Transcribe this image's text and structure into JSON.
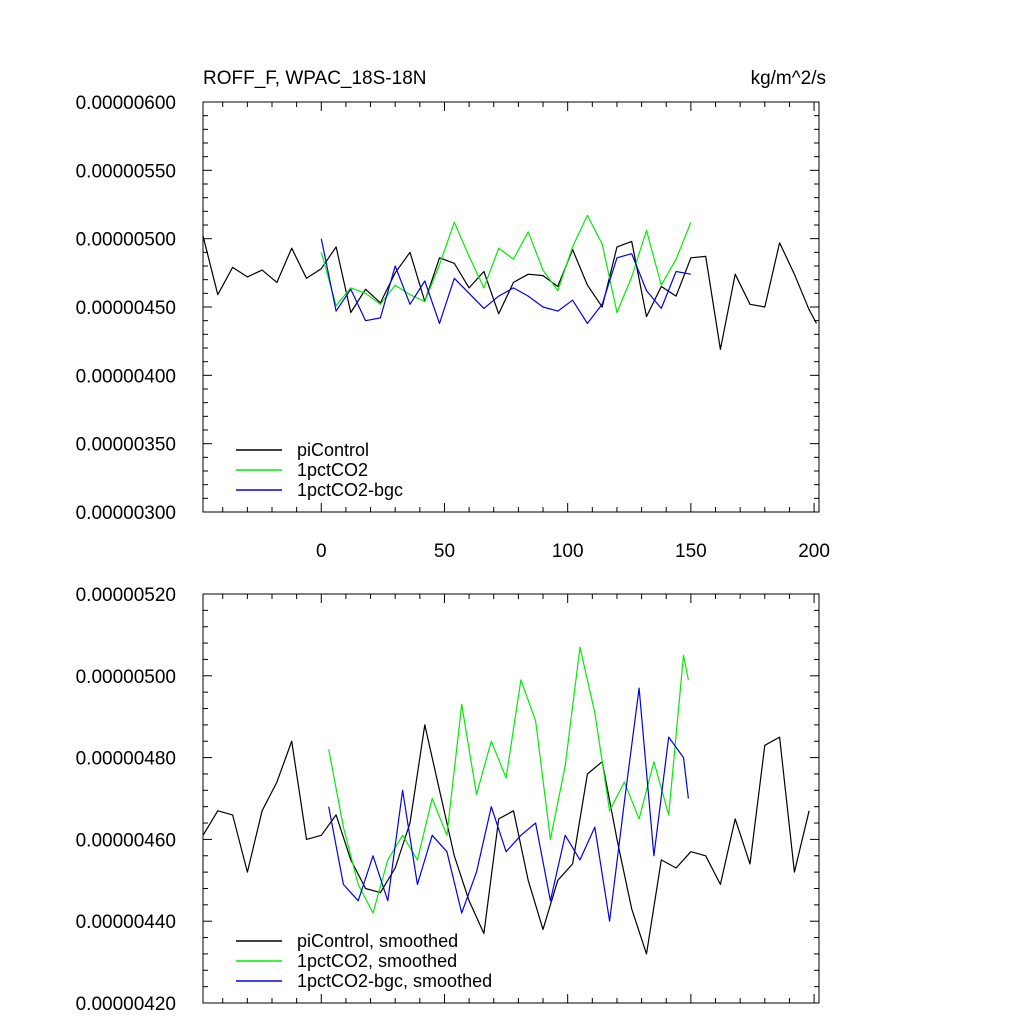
{
  "chart_data": [
    {
      "type": "line",
      "title": "ROFF_F, WPAC_18S-18N",
      "units": "kg/m^2/s",
      "xlabel": "",
      "ylabel": "",
      "xlim": [
        -48,
        202
      ],
      "ylim": [
        3e-06,
        6e-06
      ],
      "x_ticks": [
        0,
        50,
        100,
        150,
        200
      ],
      "x_tick_labels": [
        "0",
        "50",
        "100",
        "150",
        "200"
      ],
      "y_ticks": [
        3e-06,
        3.5e-06,
        4e-06,
        4.5e-06,
        5e-06,
        5.5e-06,
        6e-06
      ],
      "y_tick_labels": [
        "0.00000300",
        "0.00000350",
        "0.00000400",
        "0.00000450",
        "0.00000500",
        "0.00000550",
        "0.00000600"
      ],
      "grid": false,
      "legend_position": "bottom-left",
      "series": [
        {
          "name": "piControl",
          "color": "#000000",
          "x": [
            -48,
            -42,
            -36,
            -30,
            -24,
            -18,
            -12,
            -6,
            0,
            6,
            12,
            18,
            24,
            30,
            36,
            42,
            48,
            54,
            60,
            66,
            72,
            78,
            84,
            90,
            96,
            102,
            108,
            114,
            120,
            126,
            132,
            138,
            144,
            150,
            156,
            162,
            168,
            174,
            180,
            186,
            192,
            198,
            201
          ],
          "values": [
            5.02e-06,
            4.59e-06,
            4.79e-06,
            4.72e-06,
            4.77e-06,
            4.68e-06,
            4.93e-06,
            4.71e-06,
            4.78e-06,
            4.94e-06,
            4.46e-06,
            4.63e-06,
            4.53e-06,
            4.75e-06,
            4.9e-06,
            4.54e-06,
            4.86e-06,
            4.82e-06,
            4.64e-06,
            4.76e-06,
            4.45e-06,
            4.68e-06,
            4.74e-06,
            4.73e-06,
            4.65e-06,
            4.92e-06,
            4.66e-06,
            4.5e-06,
            4.94e-06,
            4.98e-06,
            4.43e-06,
            4.65e-06,
            4.58e-06,
            4.86e-06,
            4.87e-06,
            4.19e-06,
            4.74e-06,
            4.52e-06,
            4.5e-06,
            4.97e-06,
            4.74e-06,
            4.48e-06,
            4.38e-06
          ]
        },
        {
          "name": "1pctCO2",
          "color": "#00ee00",
          "x": [
            0,
            6,
            12,
            18,
            24,
            30,
            36,
            42,
            48,
            54,
            60,
            66,
            72,
            78,
            84,
            90,
            96,
            102,
            108,
            114,
            120,
            126,
            132,
            138,
            144,
            150
          ],
          "values": [
            4.9e-06,
            4.51e-06,
            4.64e-06,
            4.6e-06,
            4.52e-06,
            4.66e-06,
            4.59e-06,
            4.54e-06,
            4.81e-06,
            5.12e-06,
            4.87e-06,
            4.64e-06,
            4.93e-06,
            4.85e-06,
            5.05e-06,
            4.77e-06,
            4.62e-06,
            4.94e-06,
            5.17e-06,
            4.96e-06,
            4.46e-06,
            4.72e-06,
            5.06e-06,
            4.66e-06,
            4.85e-06,
            5.12e-06
          ]
        },
        {
          "name": "1pctCO2-bgc",
          "color": "#0000ee",
          "x": [
            0,
            6,
            12,
            18,
            24,
            30,
            36,
            42,
            48,
            54,
            60,
            66,
            72,
            78,
            84,
            90,
            96,
            102,
            108,
            114,
            120,
            126,
            132,
            138,
            144,
            150
          ],
          "values": [
            5e-06,
            4.47e-06,
            4.63e-06,
            4.4e-06,
            4.42e-06,
            4.8e-06,
            4.52e-06,
            4.69e-06,
            4.38e-06,
            4.71e-06,
            4.6e-06,
            4.49e-06,
            4.58e-06,
            4.64e-06,
            4.58e-06,
            4.5e-06,
            4.47e-06,
            4.55e-06,
            4.38e-06,
            4.52e-06,
            4.86e-06,
            4.89e-06,
            4.62e-06,
            4.49e-06,
            4.76e-06,
            4.74e-06
          ]
        }
      ]
    },
    {
      "type": "line",
      "title": "",
      "xlabel": "",
      "ylabel": "",
      "xlim": [
        -48,
        202
      ],
      "ylim": [
        4.2e-06,
        5.2e-06
      ],
      "x_ticks": [
        0,
        50,
        100,
        150,
        200
      ],
      "x_tick_labels": [],
      "y_ticks": [
        4.2e-06,
        4.4e-06,
        4.6e-06,
        4.8e-06,
        5e-06,
        5.2e-06
      ],
      "y_tick_labels": [
        "0.00000420",
        "0.00000440",
        "0.00000460",
        "0.00000480",
        "0.00000500",
        "0.00000520"
      ],
      "grid": false,
      "legend_position": "bottom-left",
      "series": [
        {
          "name": "piControl, smoothed",
          "color": "#000000",
          "x": [
            -48,
            -42,
            -36,
            -30,
            -24,
            -18,
            -12,
            -6,
            0,
            6,
            12,
            18,
            24,
            30,
            36,
            42,
            48,
            54,
            60,
            66,
            72,
            78,
            84,
            90,
            96,
            102,
            108,
            114,
            120,
            126,
            132,
            138,
            144,
            150,
            156,
            162,
            168,
            174,
            180,
            186,
            192,
            198
          ],
          "values": [
            4.61e-06,
            4.67e-06,
            4.66e-06,
            4.52e-06,
            4.67e-06,
            4.74e-06,
            4.84e-06,
            4.6e-06,
            4.61e-06,
            4.66e-06,
            4.55e-06,
            4.48e-06,
            4.47e-06,
            4.53e-06,
            4.64e-06,
            4.88e-06,
            4.72e-06,
            4.56e-06,
            4.45e-06,
            4.37e-06,
            4.65e-06,
            4.67e-06,
            4.5e-06,
            4.38e-06,
            4.5e-06,
            4.54e-06,
            4.76e-06,
            4.79e-06,
            4.6e-06,
            4.43e-06,
            4.32e-06,
            4.55e-06,
            4.53e-06,
            4.57e-06,
            4.56e-06,
            4.49e-06,
            4.65e-06,
            4.54e-06,
            4.83e-06,
            4.85e-06,
            4.52e-06,
            4.67e-06
          ]
        },
        {
          "name": "1pctCO2, smoothed",
          "color": "#00ee00",
          "x": [
            3,
            9,
            15,
            21,
            27,
            33,
            39,
            45,
            51,
            57,
            63,
            69,
            75,
            81,
            87,
            93,
            99,
            105,
            111,
            117,
            123,
            129,
            135,
            141,
            147,
            149
          ],
          "values": [
            4.82e-06,
            4.63e-06,
            4.49e-06,
            4.42e-06,
            4.55e-06,
            4.61e-06,
            4.55e-06,
            4.7e-06,
            4.61e-06,
            4.93e-06,
            4.71e-06,
            4.84e-06,
            4.75e-06,
            4.99e-06,
            4.89e-06,
            4.6e-06,
            4.78e-06,
            5.07e-06,
            4.91e-06,
            4.67e-06,
            4.74e-06,
            4.65e-06,
            4.79e-06,
            4.66e-06,
            5.05e-06,
            4.99e-06
          ]
        },
        {
          "name": "1pctCO2-bgc, smoothed",
          "color": "#0000ee",
          "x": [
            3,
            9,
            15,
            21,
            27,
            33,
            39,
            45,
            51,
            57,
            63,
            69,
            75,
            81,
            87,
            93,
            99,
            105,
            111,
            117,
            123,
            129,
            135,
            141,
            147,
            149
          ],
          "values": [
            4.68e-06,
            4.49e-06,
            4.45e-06,
            4.56e-06,
            4.45e-06,
            4.72e-06,
            4.49e-06,
            4.61e-06,
            4.57e-06,
            4.42e-06,
            4.52e-06,
            4.68e-06,
            4.57e-06,
            4.61e-06,
            4.64e-06,
            4.45e-06,
            4.61e-06,
            4.55e-06,
            4.63e-06,
            4.4e-06,
            4.69e-06,
            4.97e-06,
            4.56e-06,
            4.85e-06,
            4.8e-06,
            4.7e-06
          ]
        }
      ]
    }
  ]
}
